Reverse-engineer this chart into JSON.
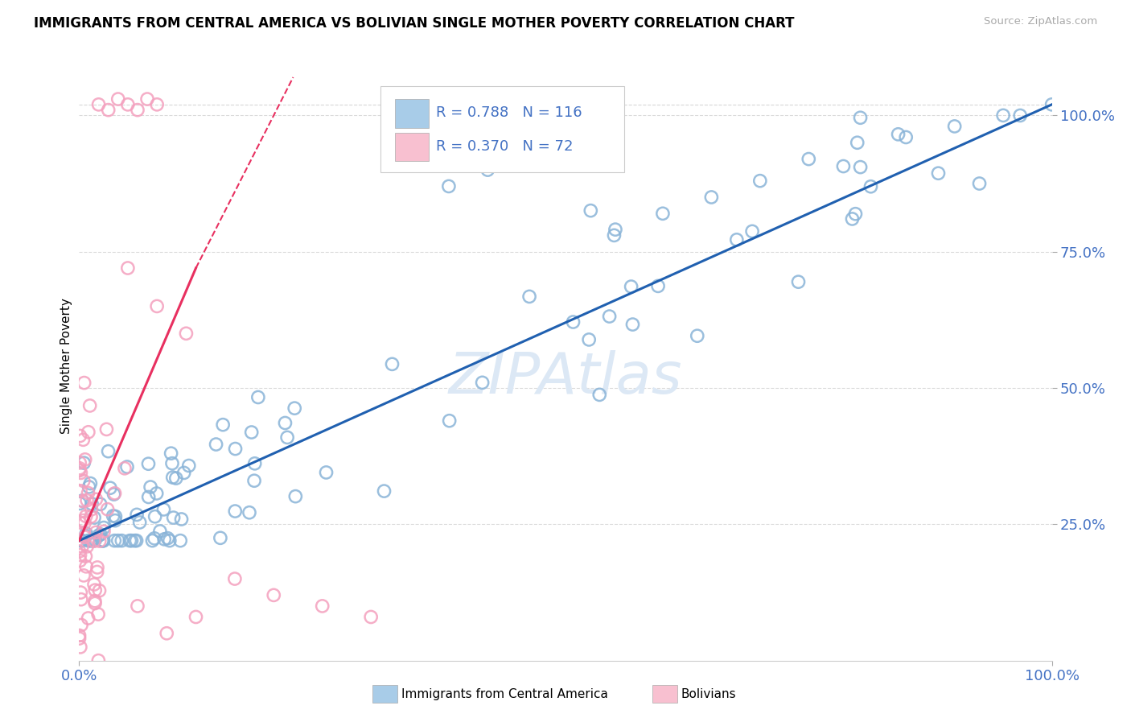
{
  "title": "IMMIGRANTS FROM CENTRAL AMERICA VS BOLIVIAN SINGLE MOTHER POVERTY CORRELATION CHART",
  "source": "Source: ZipAtlas.com",
  "ylabel": "Single Mother Poverty",
  "r_blue": "0.788",
  "n_blue": "116",
  "r_pink": "0.370",
  "n_pink": "72",
  "blue_scatter_color": "#8ab4d8",
  "pink_scatter_color": "#f4a0be",
  "blue_line_color": "#2060b0",
  "pink_line_color": "#e83060",
  "blue_legend_color": "#a8cce8",
  "pink_legend_color": "#f8c0d0",
  "text_blue_color": "#4472c4",
  "grid_color": "#d8d8d8",
  "watermark_color": "#dce8f5",
  "background_color": "#ffffff",
  "seed": 12345
}
